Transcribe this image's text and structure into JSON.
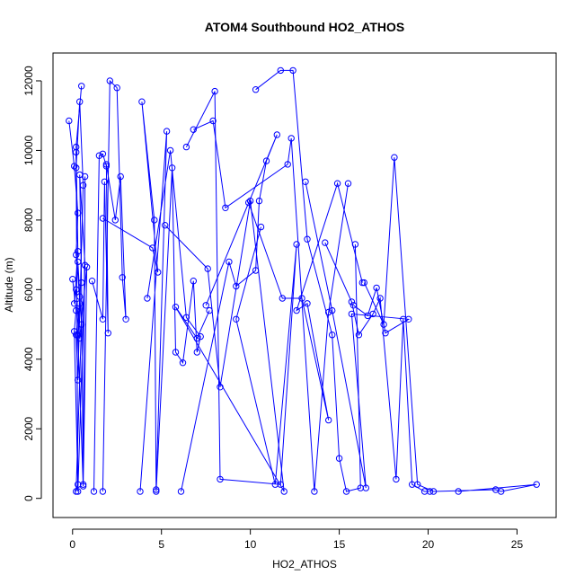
{
  "chart_data": {
    "type": "line",
    "title": "ATOM4 Southbound HO2_ATHOS",
    "xlabel": "HO2_ATHOS",
    "ylabel": "Altitude (m)",
    "xlim": [
      -1.1,
      27.2
    ],
    "ylim": [
      -550,
      12800
    ],
    "xticks": [
      0,
      5,
      10,
      15,
      20,
      25
    ],
    "yticks": [
      0,
      2000,
      4000,
      6000,
      8000,
      10000,
      12000
    ],
    "series_color": "#0000ff",
    "series": [
      {
        "x": [
          -0.2,
          0.1,
          0.3,
          0.2,
          0.4,
          0.3,
          0.6,
          0.5,
          0.4,
          0.7,
          0.3,
          0.2,
          0.5
        ],
        "y": [
          10850,
          9550,
          8200,
          7000,
          5800,
          4700,
          350,
          6200,
          9300,
          6700,
          200,
          10100,
          11850
        ]
      },
      {
        "x": [
          0.0,
          0.2,
          0.1,
          0.3,
          0.2,
          0.5,
          0.3,
          0.4,
          0.2,
          0.3,
          0.6,
          0.4,
          0.2
        ],
        "y": [
          6300,
          5400,
          4800,
          400,
          200,
          5000,
          6800,
          5600,
          4700,
          3400,
          9000,
          11400,
          9500
        ]
      },
      {
        "x": [
          0.7,
          0.6,
          0.8,
          0.4,
          0.2,
          0.1,
          0.3,
          0.2
        ],
        "y": [
          9250,
          400,
          6650,
          4600,
          6000,
          5600,
          7100,
          9950
        ]
      },
      {
        "x": [
          1.2,
          1.5,
          1.7,
          1.9,
          2.0,
          1.8,
          1.7,
          1.1
        ],
        "y": [
          200,
          9850,
          9900,
          9550,
          4750,
          9100,
          5150,
          6250
        ]
      },
      {
        "x": [
          1.7,
          2.1,
          2.5,
          2.8,
          3.0,
          2.7,
          2.4,
          1.9
        ],
        "y": [
          200,
          12000,
          11800,
          6350,
          5150,
          9250,
          8000,
          9600
        ]
      },
      {
        "x": [
          1.7,
          4.5,
          4.8,
          3.9,
          4.6,
          4.7,
          5.3,
          3.8
        ],
        "y": [
          8050,
          7200,
          6500,
          11400,
          8000,
          250,
          10550,
          200
        ]
      },
      {
        "x": [
          4.7,
          5.6,
          5.8,
          6.2,
          6.8,
          7.0,
          7.2,
          6.4,
          5.5,
          4.2
        ],
        "y": [
          200,
          9500,
          4200,
          3900,
          6250,
          4200,
          4650,
          5200,
          10000,
          5750
        ]
      },
      {
        "x": [
          5.2,
          7.6,
          8.3,
          10.0,
          11.9,
          5.8,
          7.0,
          7.7
        ],
        "y": [
          7850,
          6600,
          3200,
          8550,
          200,
          5500,
          4600,
          5400
        ]
      },
      {
        "x": [
          6.1,
          8.8,
          9.2,
          10.3,
          10.5,
          10.9,
          11.5,
          7.5
        ],
        "y": [
          200,
          6800,
          6100,
          6550,
          8550,
          9700,
          10450,
          5550
        ]
      },
      {
        "x": [
          6.4,
          8.0,
          8.3,
          11.7,
          12.6,
          11.4,
          9.2,
          10.6
        ],
        "y": [
          10100,
          11700,
          550,
          400,
          7300,
          400,
          5150,
          7800
        ]
      },
      {
        "x": [
          6.8,
          7.9,
          8.6,
          12.1,
          12.3,
          13.6,
          14.4,
          15.5
        ],
        "y": [
          10600,
          10850,
          8350,
          9600,
          10350,
          200,
          5350,
          9050
        ]
      },
      {
        "x": [
          10.3,
          11.7,
          12.4,
          13.2,
          14.6,
          15.0,
          15.4,
          16.2,
          15.9
        ],
        "y": [
          11750,
          12300,
          12300,
          7450,
          4700,
          1150,
          200,
          300,
          7300
        ]
      },
      {
        "x": [
          9.9,
          11.8,
          12.9,
          14.4,
          13.2,
          12.6,
          14.9,
          16.3
        ],
        "y": [
          8500,
          5750,
          5750,
          2250,
          5600,
          5400,
          9050,
          6200
        ]
      },
      {
        "x": [
          14.2,
          15.7,
          16.1,
          16.9,
          17.3,
          18.2,
          18.6,
          19.1,
          19.8,
          20.1
        ],
        "y": [
          7350,
          5650,
          4700,
          5300,
          5750,
          550,
          5150,
          400,
          200,
          200
        ]
      },
      {
        "x": [
          16.4,
          17.5,
          18.1,
          19.4,
          20.3,
          23.8,
          24.1,
          26.1,
          21.7
        ],
        "y": [
          6200,
          5000,
          9800,
          400,
          200,
          250,
          200,
          400,
          200
        ]
      },
      {
        "x": [
          15.8,
          16.6,
          17.1,
          17.6,
          18.9,
          15.7,
          16.5,
          14.6,
          13.1
        ],
        "y": [
          5550,
          5250,
          6050,
          4750,
          5150,
          5300,
          300,
          5400,
          9100
        ]
      }
    ]
  }
}
